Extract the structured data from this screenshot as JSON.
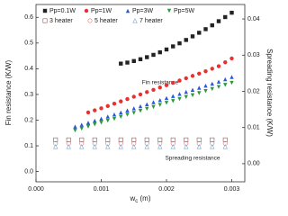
{
  "chart_data": {
    "type": "scatter",
    "xlabel": {
      "main": "w",
      "sub": "c",
      "unit": " (m)"
    },
    "ylabel": "Fin resistance (K/W)",
    "y2label": "Spreading resistance (K/W)",
    "annotations": [
      "Fin resistance",
      "Spreading resistance"
    ],
    "xlim": [
      0,
      0.0032
    ],
    "xticks": [
      {
        "value": 0,
        "label": "0.000"
      },
      {
        "value": 0.001,
        "label": "0.001"
      },
      {
        "value": 0.002,
        "label": "0.002"
      },
      {
        "value": 0.003,
        "label": "0.003"
      }
    ],
    "ylim": [
      -0.04,
      0.65
    ],
    "yticks": [
      {
        "value": 0,
        "label": "0.0"
      },
      0.1,
      0.2,
      0.3,
      0.4,
      0.5,
      0.6
    ],
    "y2lim": [
      -0.005,
      0.044
    ],
    "y2ticks": [
      {
        "value": 0,
        "label": "0.00"
      },
      {
        "value": 0.01,
        "label": "0.01"
      },
      {
        "value": 0.02,
        "label": "0.02"
      },
      {
        "value": 0.03,
        "label": "0.03"
      },
      {
        "value": 0.04,
        "label": "0.04"
      }
    ],
    "series": [
      {
        "name": "Pp=0.1W",
        "color": "#222222",
        "marker": "square",
        "x": [
          0.0013,
          0.0014,
          0.0015,
          0.0016,
          0.0017,
          0.0018,
          0.0019,
          0.002,
          0.0021,
          0.0022,
          0.0023,
          0.0024,
          0.0025,
          0.0026,
          0.0027,
          0.0028,
          0.0029,
          0.003
        ],
        "values": [
          0.42,
          0.424,
          0.43,
          0.437,
          0.445,
          0.454,
          0.464,
          0.475,
          0.487,
          0.499,
          0.512,
          0.526,
          0.54,
          0.554,
          0.569,
          0.585,
          0.601,
          0.618
        ]
      },
      {
        "name": "Pp=1W",
        "color": "#e8312f",
        "marker": "circle",
        "x": [
          0.0008,
          0.0009,
          0.001,
          0.0011,
          0.0012,
          0.0013,
          0.0014,
          0.0015,
          0.0016,
          0.0017,
          0.0018,
          0.0019,
          0.002,
          0.0021,
          0.0022,
          0.0023,
          0.0024,
          0.0025,
          0.0026,
          0.0027,
          0.0028,
          0.0029,
          0.003
        ],
        "values": [
          0.23,
          0.238,
          0.246,
          0.255,
          0.264,
          0.273,
          0.282,
          0.291,
          0.3,
          0.309,
          0.318,
          0.327,
          0.336,
          0.345,
          0.354,
          0.363,
          0.372,
          0.381,
          0.39,
          0.4,
          0.41,
          0.425,
          0.44
        ]
      },
      {
        "name": "Pp=3W",
        "color": "#2b58d8",
        "marker": "triangle-up",
        "x": [
          0.0006,
          0.0007,
          0.0008,
          0.0009,
          0.001,
          0.0011,
          0.0012,
          0.0013,
          0.0014,
          0.0015,
          0.0016,
          0.0017,
          0.0018,
          0.0019,
          0.002,
          0.0021,
          0.0022,
          0.0023,
          0.0024,
          0.0025,
          0.0026,
          0.0027,
          0.0028,
          0.0029,
          0.003
        ],
        "values": [
          0.175,
          0.182,
          0.19,
          0.198,
          0.206,
          0.214,
          0.222,
          0.23,
          0.238,
          0.246,
          0.254,
          0.262,
          0.27,
          0.278,
          0.286,
          0.294,
          0.302,
          0.31,
          0.318,
          0.326,
          0.334,
          0.342,
          0.35,
          0.359,
          0.368
        ]
      },
      {
        "name": "Pp=5W",
        "color": "#2a9a3a",
        "marker": "triangle-down",
        "x": [
          0.0006,
          0.0007,
          0.0008,
          0.0009,
          0.001,
          0.0011,
          0.0012,
          0.0013,
          0.0014,
          0.0015,
          0.0016,
          0.0017,
          0.0018,
          0.0019,
          0.002,
          0.0021,
          0.0022,
          0.0023,
          0.0024,
          0.0025,
          0.0026,
          0.0027,
          0.0028,
          0.0029,
          0.003
        ],
        "values": [
          0.16,
          0.167,
          0.175,
          0.183,
          0.19,
          0.198,
          0.205,
          0.213,
          0.221,
          0.228,
          0.236,
          0.244,
          0.251,
          0.259,
          0.267,
          0.274,
          0.282,
          0.29,
          0.297,
          0.305,
          0.313,
          0.321,
          0.329,
          0.337,
          0.345
        ]
      },
      {
        "name": "3 heater",
        "color": "#8a5a5a",
        "marker": "square-open",
        "axis": "y2",
        "x": [
          0.0003,
          0.0005,
          0.0007,
          0.0009,
          0.0011,
          0.0013,
          0.0015,
          0.0017,
          0.0019,
          0.0021,
          0.0023,
          0.0025,
          0.0027,
          0.0029
        ],
        "values": [
          0.0066,
          0.0066,
          0.0066,
          0.0066,
          0.0066,
          0.0066,
          0.0066,
          0.0066,
          0.0066,
          0.0066,
          0.0066,
          0.0066,
          0.0066,
          0.0066
        ]
      },
      {
        "name": "5 heater",
        "color": "#e07070",
        "marker": "circle-open",
        "axis": "y2",
        "x": [
          0.0003,
          0.0005,
          0.0007,
          0.0009,
          0.0011,
          0.0013,
          0.0015,
          0.0017,
          0.0019,
          0.0021,
          0.0023,
          0.0025,
          0.0027,
          0.0029
        ],
        "values": [
          0.0056,
          0.0056,
          0.0056,
          0.0056,
          0.0056,
          0.0056,
          0.0056,
          0.0056,
          0.0056,
          0.0056,
          0.0056,
          0.0056,
          0.0056,
          0.0056
        ]
      },
      {
        "name": "7 heater",
        "color": "#6fa8dc",
        "marker": "triangle-open",
        "axis": "y2",
        "x": [
          0.0003,
          0.0005,
          0.0007,
          0.0009,
          0.0011,
          0.0013,
          0.0015,
          0.0017,
          0.0019,
          0.0021,
          0.0023,
          0.0025,
          0.0027,
          0.0029
        ],
        "values": [
          0.0047,
          0.0047,
          0.0047,
          0.0047,
          0.0047,
          0.0047,
          0.0047,
          0.0047,
          0.0047,
          0.0047,
          0.0047,
          0.0047,
          0.0047,
          0.0047
        ]
      }
    ]
  }
}
